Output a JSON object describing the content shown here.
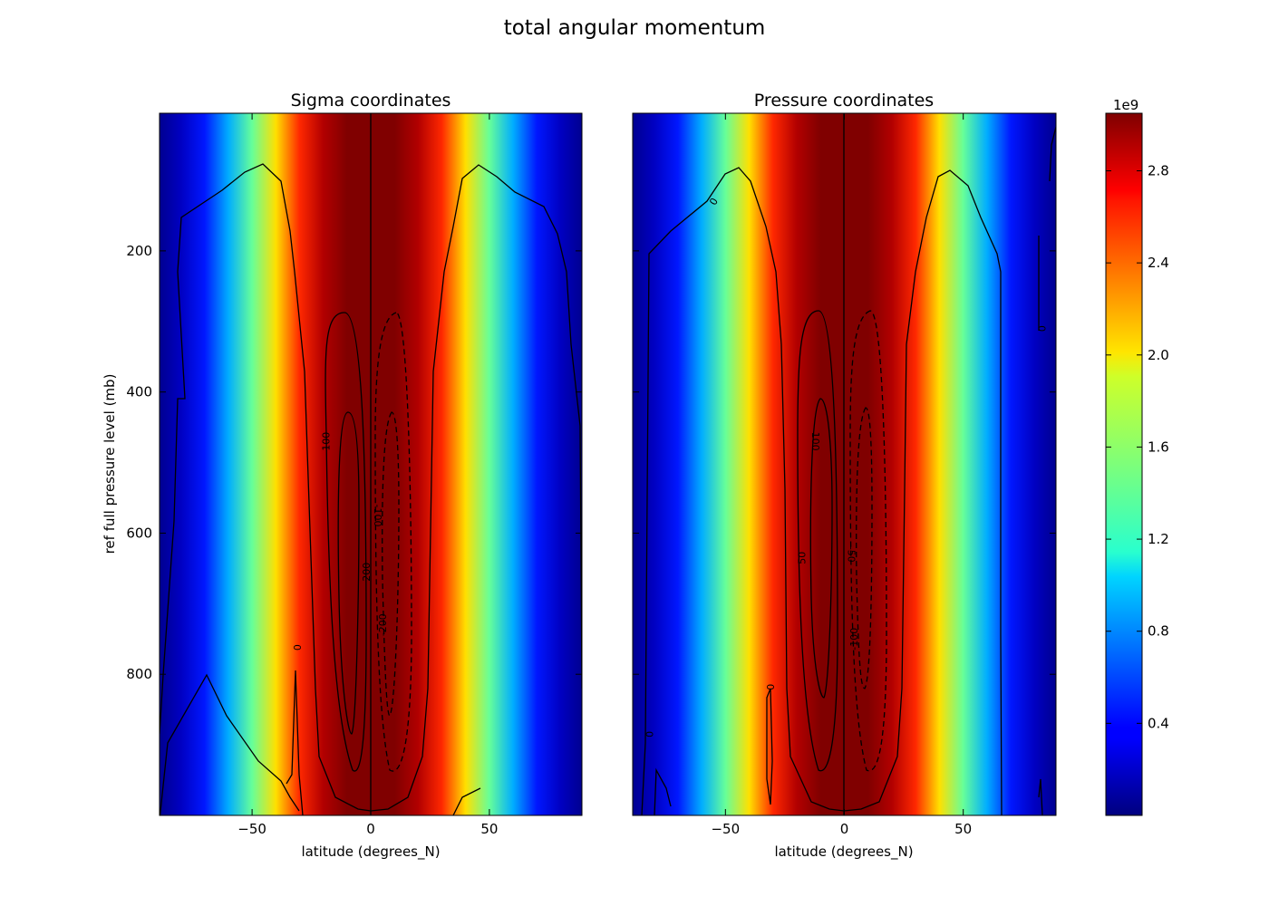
{
  "chart_data": {
    "title": "total angular momentum",
    "colorbar": {
      "offset_label": "1e9",
      "ticks": [
        0.4,
        0.8,
        1.2,
        1.6,
        2.0,
        2.4,
        2.8
      ],
      "tick_labels": [
        "0.4",
        "0.8",
        "1.2",
        "1.6",
        "2.0",
        "2.4",
        "2.8"
      ],
      "range": [
        0.0,
        3.05
      ],
      "colormap": "jet"
    },
    "panels": [
      {
        "type": "heatmap",
        "title": "Sigma coordinates",
        "xlabel": "latitude (degrees_N)",
        "ylabel": "ref full pressure level (mb)",
        "xlim": [
          -89,
          89
        ],
        "ylim": [
          1000,
          5
        ],
        "x_ticks": [
          -50,
          0,
          50
        ],
        "x_tick_labels": [
          "−50",
          "0",
          "50"
        ],
        "y_ticks": [
          200,
          400,
          600,
          800
        ],
        "y_tick_labels": [
          "200",
          "400",
          "600",
          "800"
        ],
        "heat_profile": {
          "description_of_values": "color value (1e9) vs latitude, nearly uniform with pressure",
          "lat": [
            -89,
            -80,
            -70,
            -60,
            -50,
            -40,
            -30,
            -20,
            -10,
            0,
            10,
            20,
            30,
            40,
            50,
            60,
            70,
            80,
            89
          ],
          "value": [
            0.05,
            0.2,
            0.45,
            0.9,
            1.45,
            2.0,
            2.55,
            2.9,
            3.05,
            3.05,
            3.05,
            2.9,
            2.55,
            2.0,
            1.45,
            0.9,
            0.45,
            0.2,
            0.05
          ]
        },
        "contour_labels": [
          {
            "text": "0",
            "lat": -31,
            "p": 762,
            "rot": 90
          },
          {
            "text": "100",
            "lat": -19,
            "p": 470,
            "rot": -90
          },
          {
            "text": "200",
            "lat": -2,
            "p": 655,
            "rot": -90
          },
          {
            "text": "-100",
            "lat": 3,
            "p": 575,
            "rot": 90
          },
          {
            "text": "-200",
            "lat": 5,
            "p": 730,
            "rot": -90
          }
        ]
      },
      {
        "type": "heatmap",
        "title": "Pressure coordinates",
        "xlabel": "latitude (degrees_N)",
        "xlim": [
          -89,
          89
        ],
        "ylim": [
          1000,
          5
        ],
        "x_ticks": [
          -50,
          0,
          50
        ],
        "x_tick_labels": [
          "−50",
          "0",
          "50"
        ],
        "heat_profile": {
          "description_of_values": "color value (1e9) vs latitude, nearly uniform with pressure",
          "lat": [
            -89,
            -80,
            -70,
            -60,
            -50,
            -40,
            -30,
            -20,
            -10,
            0,
            10,
            20,
            30,
            40,
            50,
            60,
            70,
            80,
            89
          ],
          "value": [
            0.05,
            0.2,
            0.45,
            0.9,
            1.45,
            2.0,
            2.55,
            2.9,
            3.05,
            3.05,
            3.05,
            2.9,
            2.55,
            2.0,
            1.45,
            0.9,
            0.45,
            0.2,
            0.05
          ]
        },
        "contour_labels": [
          {
            "text": "0",
            "lat": -55,
            "p": 130,
            "rot": -60
          },
          {
            "text": "100",
            "lat": -12,
            "p": 470,
            "rot": 90
          },
          {
            "text": "50",
            "lat": -18,
            "p": 635,
            "rot": -90
          },
          {
            "text": "-50",
            "lat": 3,
            "p": 630,
            "rot": 90
          },
          {
            "text": "-100",
            "lat": 4,
            "p": 750,
            "rot": -90
          },
          {
            "text": "0",
            "lat": -31,
            "p": 818,
            "rot": -90
          },
          {
            "text": "0",
            "lat": -82,
            "p": 885,
            "rot": -90
          },
          {
            "text": "0",
            "lat": 83,
            "p": 310,
            "rot": -90
          }
        ]
      }
    ]
  }
}
